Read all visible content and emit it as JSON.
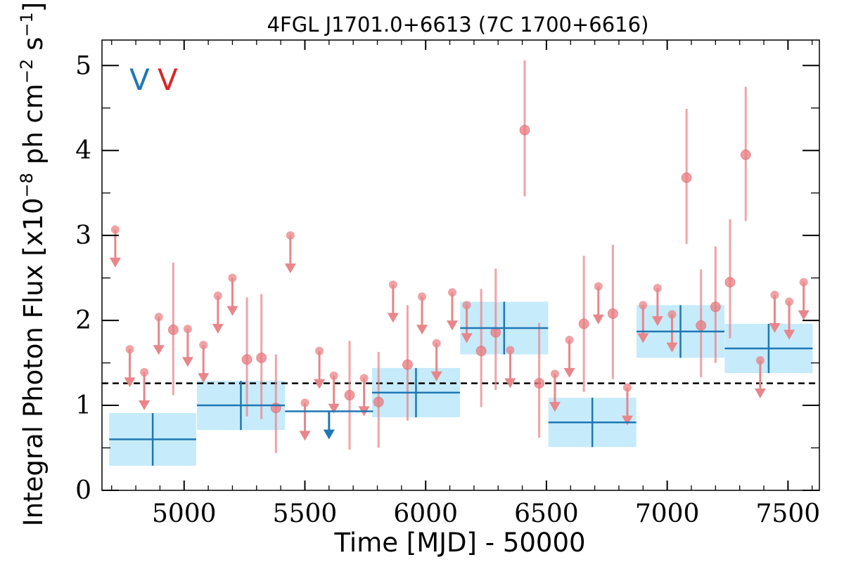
{
  "chart_data": {
    "type": "scatter",
    "title": "4FGL J1701.0+6613 (7C 1700+6616)",
    "xlabel": "Time [MJD] - 50000",
    "ylabel_main": "Integral Photon Flux [x10",
    "ylabel_exp1": "−8",
    "ylabel_mid": " ph cm",
    "ylabel_exp2": "−2",
    "ylabel_mid2": " s",
    "ylabel_exp3": "−1",
    "ylabel_end": "]",
    "xlim": [
      4660,
      7630
    ],
    "ylim": [
      0,
      5.3
    ],
    "xticks": [
      5000,
      5500,
      6000,
      6500,
      7000,
      7500
    ],
    "xtick_labels": [
      "5000",
      "5500",
      "6000",
      "6500",
      "7000",
      "7500"
    ],
    "yticks": [
      0,
      1,
      2,
      3,
      4,
      5
    ],
    "ytick_labels": [
      "0",
      "1",
      "2",
      "3",
      "4",
      "5"
    ],
    "reference_line": 1.26,
    "markers": [
      {
        "label": "V",
        "color": "#1f77b4"
      },
      {
        "label": "V",
        "color": "#d62728"
      }
    ],
    "colors": {
      "yearly": "#1f77b4",
      "yearly_band": "#c6ebfb",
      "monthly": "#e8868a",
      "monthly_point": "#e97a7f"
    },
    "series": [
      {
        "kind": "yearly",
        "points": [
          {
            "x": 4870,
            "y": 0.6,
            "xerr": 180,
            "yerr": 0.31
          },
          {
            "x": 5235,
            "y": 1.0,
            "xerr": 182,
            "yerr": 0.29
          },
          {
            "x": 5600,
            "ul": 0.93,
            "xerr": 182
          },
          {
            "x": 5960,
            "y": 1.15,
            "xerr": 182,
            "yerr": 0.29
          },
          {
            "x": 6325,
            "y": 1.91,
            "xerr": 182,
            "yerr": 0.31
          },
          {
            "x": 6690,
            "y": 0.8,
            "xerr": 182,
            "yerr": 0.29
          },
          {
            "x": 7055,
            "y": 1.87,
            "xerr": 182,
            "yerr": 0.31
          },
          {
            "x": 7420,
            "y": 1.67,
            "xerr": 182,
            "yerr": 0.29
          }
        ]
      },
      {
        "kind": "monthly",
        "points": [
          {
            "x": 4715,
            "ul": 3.07
          },
          {
            "x": 4775,
            "ul": 1.66
          },
          {
            "x": 4835,
            "ul": 1.39
          },
          {
            "x": 4895,
            "ul": 2.04
          },
          {
            "x": 4955,
            "y": 1.89,
            "ylo": 1.12,
            "yhi": 2.68
          },
          {
            "x": 5015,
            "ul": 1.9
          },
          {
            "x": 5080,
            "ul": 1.71
          },
          {
            "x": 5140,
            "ul": 2.29
          },
          {
            "x": 5200,
            "ul": 2.5
          },
          {
            "x": 5260,
            "y": 1.54,
            "ylo": 0.87,
            "yhi": 2.27
          },
          {
            "x": 5320,
            "y": 1.56,
            "ylo": 0.84,
            "yhi": 2.31
          },
          {
            "x": 5380,
            "y": 0.97,
            "ylo": 0.44,
            "yhi": 1.6
          },
          {
            "x": 5440,
            "ul": 3.0
          },
          {
            "x": 5500,
            "ul": 1.03
          },
          {
            "x": 5560,
            "ul": 1.64
          },
          {
            "x": 5620,
            "ul": 1.35
          },
          {
            "x": 5685,
            "y": 1.12,
            "ylo": 0.48,
            "yhi": 1.76
          },
          {
            "x": 5745,
            "ul": 1.32
          },
          {
            "x": 5805,
            "y": 1.04,
            "ylo": 0.5,
            "yhi": 1.63
          },
          {
            "x": 5865,
            "ul": 2.42
          },
          {
            "x": 5925,
            "y": 1.48,
            "ylo": 0.82,
            "yhi": 2.18
          },
          {
            "x": 5985,
            "ul": 2.28
          },
          {
            "x": 6045,
            "ul": 1.73
          },
          {
            "x": 6110,
            "ul": 2.33
          },
          {
            "x": 6170,
            "ul": 2.18
          },
          {
            "x": 6230,
            "y": 1.64,
            "ylo": 0.98,
            "yhi": 2.37
          },
          {
            "x": 6290,
            "y": 1.86,
            "ylo": 1.18,
            "yhi": 2.61
          },
          {
            "x": 6350,
            "ul": 1.65
          },
          {
            "x": 6410,
            "y": 4.24,
            "ylo": 3.46,
            "yhi": 5.06
          },
          {
            "x": 6470,
            "y": 1.26,
            "ylo": 0.62,
            "yhi": 1.97
          },
          {
            "x": 6535,
            "ul": 1.37
          },
          {
            "x": 6595,
            "ul": 1.77
          },
          {
            "x": 6655,
            "y": 1.96,
            "ylo": 1.16,
            "yhi": 2.76
          },
          {
            "x": 6715,
            "ul": 2.4
          },
          {
            "x": 6775,
            "y": 2.08,
            "ylo": 1.31,
            "yhi": 2.89
          },
          {
            "x": 6835,
            "ul": 1.21
          },
          {
            "x": 6900,
            "ul": 2.18
          },
          {
            "x": 6960,
            "ul": 2.38
          },
          {
            "x": 7020,
            "ul": 2.07
          },
          {
            "x": 7080,
            "y": 3.68,
            "ylo": 2.9,
            "yhi": 4.49
          },
          {
            "x": 7140,
            "y": 1.94,
            "ylo": 1.33,
            "yhi": 2.6
          },
          {
            "x": 7200,
            "y": 2.16,
            "ylo": 1.5,
            "yhi": 2.87
          },
          {
            "x": 7260,
            "y": 2.45,
            "ylo": 1.79,
            "yhi": 3.19
          },
          {
            "x": 7325,
            "y": 3.95,
            "ylo": 3.17,
            "yhi": 4.75
          },
          {
            "x": 7385,
            "ul": 1.53
          },
          {
            "x": 7445,
            "ul": 2.3
          },
          {
            "x": 7505,
            "ul": 2.22
          },
          {
            "x": 7565,
            "ul": 2.45
          }
        ]
      }
    ]
  }
}
